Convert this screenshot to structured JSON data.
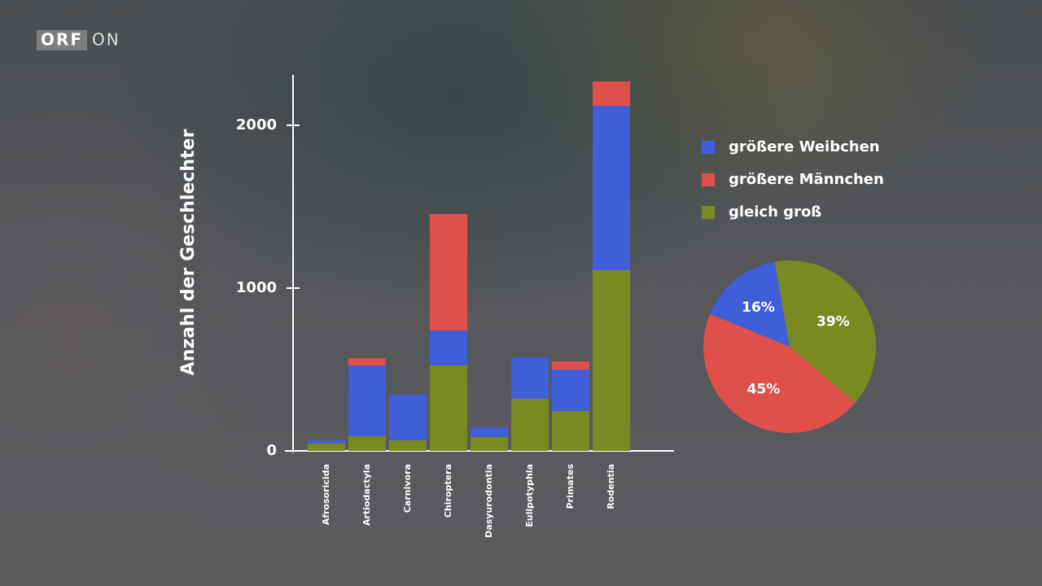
{
  "logo": {
    "brand": "ORF",
    "suffix": "ON"
  },
  "chart_data": [
    {
      "type": "bar",
      "stacked": true,
      "y_label": "Anzahl der Geschlechter",
      "categories": [
        "Afrosoricida",
        "Artiodactyla",
        "Carnivora",
        "Chiroptera",
        "Dasyurodontia",
        "Eulipotyphla",
        "Primates",
        "Rodentia"
      ],
      "series": [
        {
          "name": "gleich groß",
          "color": "#7a8a22",
          "values": [
            45,
            90,
            65,
            525,
            85,
            320,
            245,
            1110
          ]
        },
        {
          "name": "größere Weibchen",
          "color": "#3f5ed8",
          "values": [
            20,
            435,
            280,
            215,
            60,
            255,
            255,
            1010
          ]
        },
        {
          "name": "größere Männchen",
          "color": "#e0504a",
          "values": [
            0,
            45,
            0,
            715,
            0,
            0,
            50,
            150
          ]
        }
      ],
      "legend_order": [
        1,
        2,
        0
      ],
      "ylim": [
        0,
        2300
      ],
      "yticks": [
        0,
        1000,
        2000
      ]
    },
    {
      "type": "pie",
      "values": [
        16,
        45,
        39
      ],
      "value_labels": [
        "16%",
        "45%",
        "39%"
      ],
      "colors": [
        "#3f5ed8",
        "#e0504a",
        "#7a8a22"
      ]
    }
  ]
}
